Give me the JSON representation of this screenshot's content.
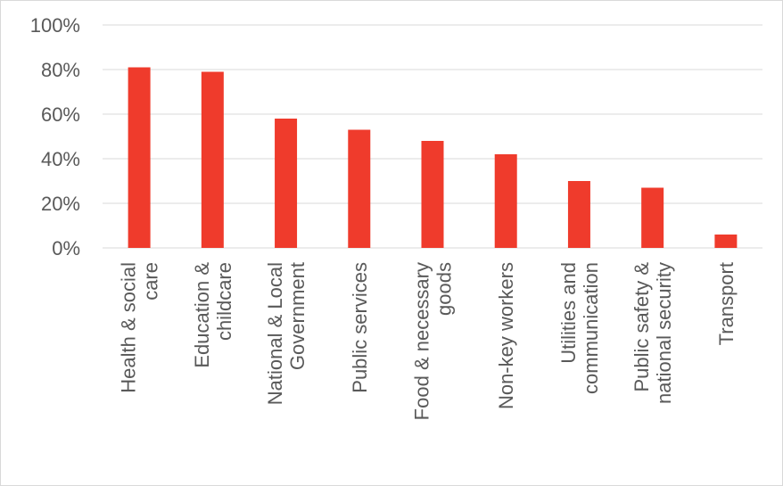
{
  "chart_data": {
    "type": "bar",
    "categories": [
      [
        "Health & social",
        "care"
      ],
      [
        "Education &",
        "childcare"
      ],
      [
        "National & Local",
        "Government"
      ],
      [
        "Public services"
      ],
      [
        "Food & necessary",
        "goods"
      ],
      [
        "Non-key workers"
      ],
      [
        "Utilities and",
        "communication"
      ],
      [
        "Public safety &",
        "national security"
      ],
      [
        "Transport"
      ]
    ],
    "values": [
      81,
      79,
      58,
      53,
      48,
      42,
      30,
      27,
      6
    ],
    "ylim": [
      0,
      100
    ],
    "yticks": [
      "0%",
      "20%",
      "40%",
      "60%",
      "80%",
      "100%"
    ],
    "tick_values": [
      0,
      20,
      40,
      60,
      80,
      100
    ],
    "bar_color": "#ef3b2c",
    "grid": true,
    "gridline_color": "#d9d9d9"
  }
}
